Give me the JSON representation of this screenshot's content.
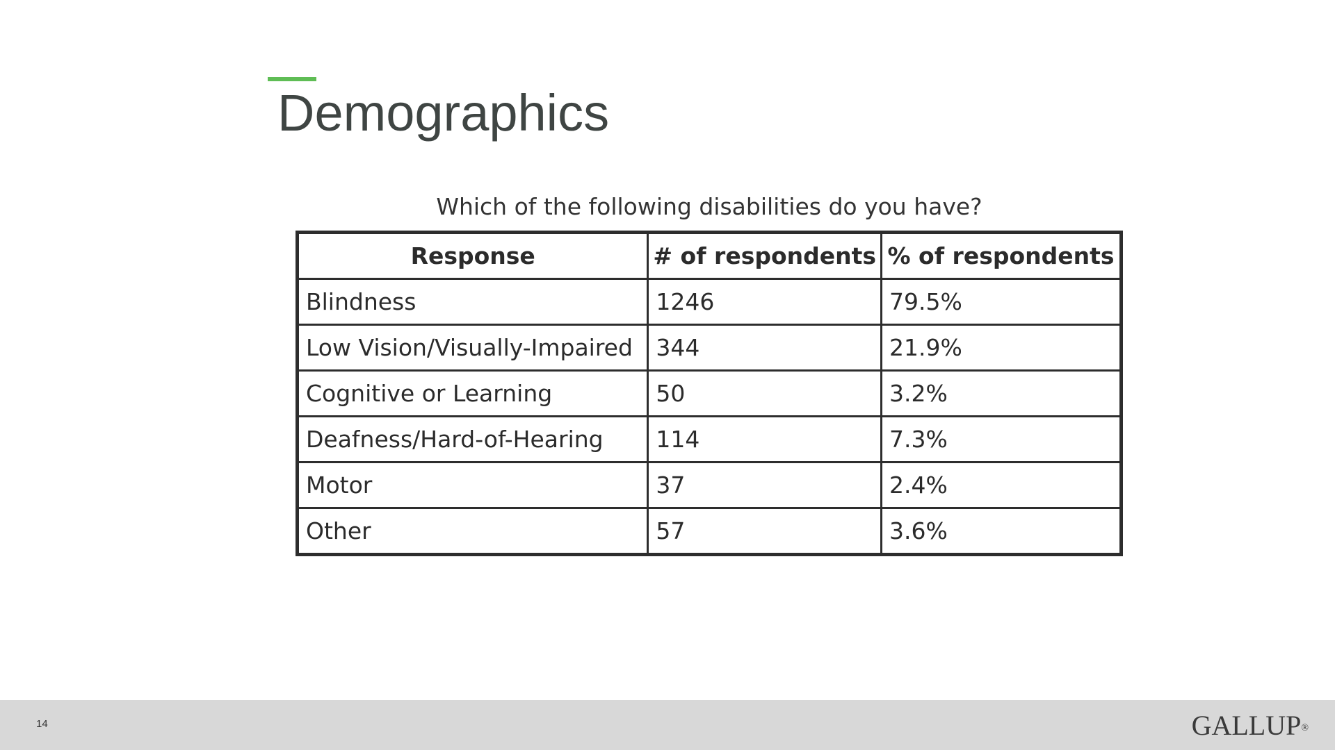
{
  "slide": {
    "title": "Demographics",
    "accent_color": "#5fbd55",
    "page_number": "14",
    "brand": "GALLUP",
    "brand_mark": "®"
  },
  "table": {
    "caption": "Which of the following disabilities do you have?",
    "headers": [
      "Response",
      "# of respondents",
      "% of respondents"
    ],
    "rows": [
      [
        "Blindness",
        "1246",
        "79.5%"
      ],
      [
        "Low Vision/Visually-Impaired",
        "344",
        "21.9%"
      ],
      [
        "Cognitive or Learning",
        "50",
        "3.2%"
      ],
      [
        "Deafness/Hard-of-Hearing",
        "114",
        "7.3%"
      ],
      [
        "Motor",
        "37",
        "2.4%"
      ],
      [
        "Other",
        "57",
        "3.6%"
      ]
    ]
  }
}
